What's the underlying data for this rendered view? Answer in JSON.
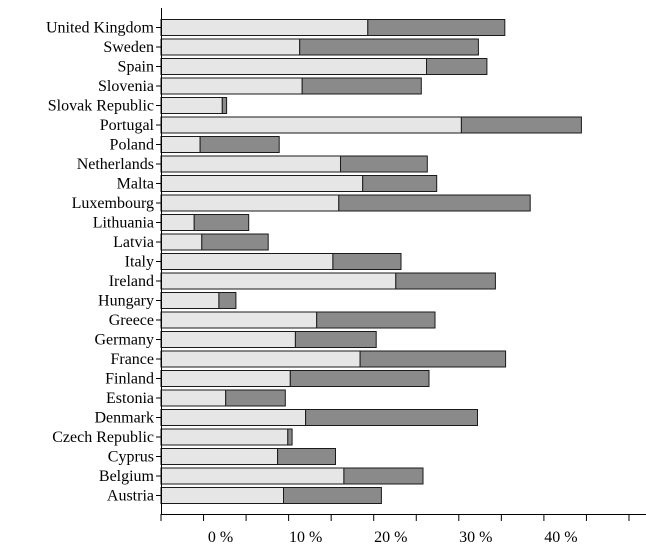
{
  "chart_data": {
    "type": "bar",
    "orientation": "horizontal",
    "stacked": true,
    "categories": [
      "United Kingdom",
      "Sweden",
      "Spain",
      "Slovenia",
      "Slovak Republic",
      "Portugal",
      "Poland",
      "Netherlands",
      "Malta",
      "Luxembourg",
      "Lithuania",
      "Latvia",
      "Italy",
      "Ireland",
      "Hungary",
      "Greece",
      "Germany",
      "France",
      "Finland",
      "Estonia",
      "Denmark",
      "Czech Republic",
      "Cyprus",
      "Belgium",
      "Austria"
    ],
    "series": [
      {
        "color": "#e6e6e6",
        "values": [
          24.3,
          16.3,
          31.2,
          16.6,
          7.2,
          35.3,
          4.6,
          21.1,
          23.7,
          20.9,
          3.9,
          4.8,
          20.2,
          27.6,
          6.8,
          18.3,
          15.8,
          23.4,
          15.2,
          7.6,
          17.0,
          14.9,
          13.7,
          21.5,
          14.4
        ]
      },
      {
        "color": "#8a8a8a",
        "values": [
          16.1,
          21.0,
          7.1,
          14.0,
          0.5,
          14.1,
          9.3,
          10.2,
          8.7,
          22.5,
          6.4,
          7.8,
          8.0,
          11.7,
          2.0,
          13.9,
          9.5,
          17.1,
          16.3,
          7.0,
          20.2,
          0.5,
          6.8,
          9.3,
          11.5
        ]
      }
    ],
    "x_ticks": [
      "0 %",
      "10 %",
      "20 %",
      "30 %",
      "40 %"
    ],
    "x_tick_values": [
      0,
      10,
      20,
      30,
      40
    ],
    "xlim": [
      -7,
      50
    ],
    "grid": false,
    "legend": "none"
  }
}
